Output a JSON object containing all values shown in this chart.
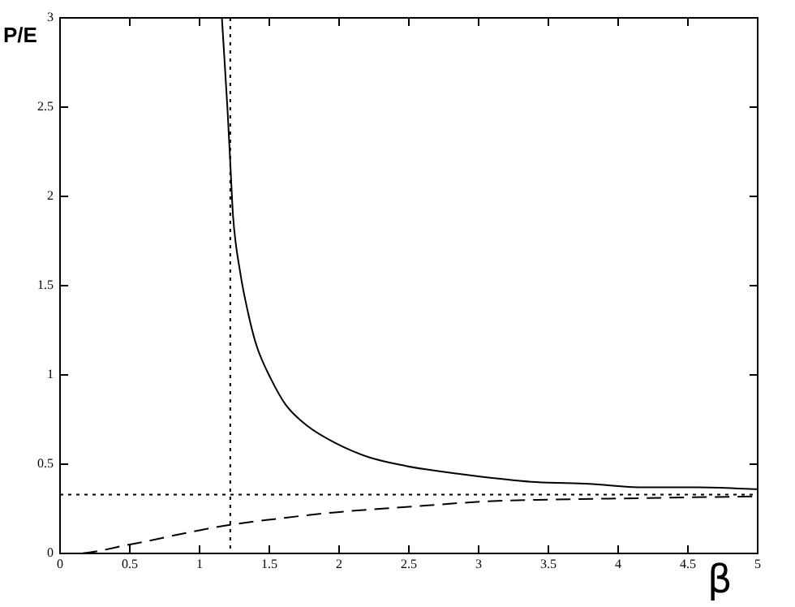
{
  "chart_data": {
    "type": "line",
    "ylabel": "P/E",
    "xlabel": "β",
    "xlim": [
      0,
      5
    ],
    "ylim": [
      0,
      3
    ],
    "xticks": [
      0,
      0.5,
      1,
      1.5,
      2,
      2.5,
      3,
      3.5,
      4,
      4.5,
      5
    ],
    "yticks": [
      0,
      0.5,
      1,
      1.5,
      2,
      2.5,
      3
    ],
    "grid": false,
    "legend": false,
    "marker": "none",
    "series": [
      {
        "color": "#000000",
        "line_style": "solid",
        "x": [
          1.16,
          1.2,
          1.22,
          1.24,
          1.29,
          1.35,
          1.41,
          1.51,
          1.62,
          1.78,
          1.97,
          2.21,
          2.48,
          2.63,
          3.02,
          3.41,
          3.79,
          4.18,
          4.57,
          5
        ],
        "values": [
          3,
          2.49,
          2.19,
          1.89,
          1.58,
          1.34,
          1.16,
          0.98,
          0.83,
          0.71,
          0.62,
          0.54,
          0.49,
          0.47,
          0.43,
          0.4,
          0.39,
          0.37,
          0.37,
          0.36
        ]
      },
      {
        "color": "#000000",
        "line_style": "dashed",
        "x": [
          0,
          0.11,
          0.5,
          1,
          1.22,
          1.51,
          1.97,
          2.48,
          3.02,
          3.41,
          4.18,
          5
        ],
        "values": [
          0,
          0,
          0.05,
          0.13,
          0.16,
          0.19,
          0.23,
          0.26,
          0.29,
          0.3,
          0.31,
          0.32
        ]
      }
    ],
    "ref_lines": [
      {
        "axis": "x",
        "value": 1.22,
        "line_style": "dotted",
        "color": "#000000"
      },
      {
        "axis": "y",
        "value": 0.33,
        "line_style": "dotted",
        "color": "#000000"
      }
    ]
  }
}
